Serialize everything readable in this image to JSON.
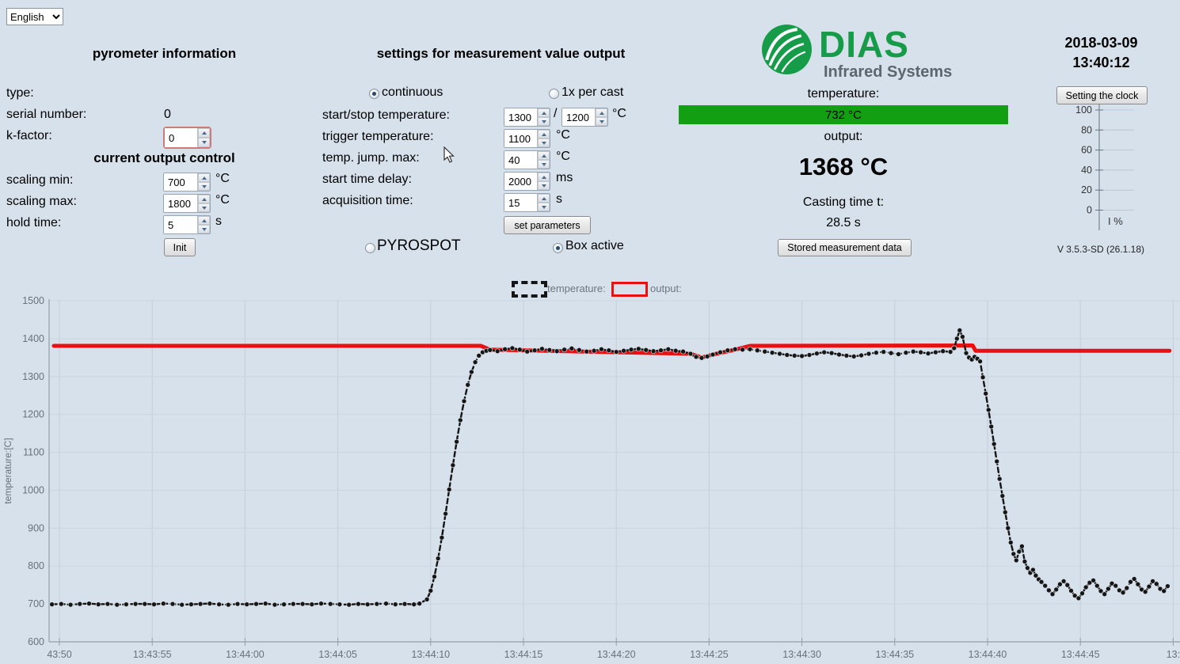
{
  "language": {
    "value": "English"
  },
  "pyrometer_info": {
    "title": "pyrometer information",
    "type_label": "type:",
    "serial_label": "serial number:",
    "serial_value": "0",
    "kfactor_label": "k-factor:",
    "kfactor_value": "0"
  },
  "current_output": {
    "title": "current output control",
    "scaling_min_label": "scaling min:",
    "scaling_min_value": "700",
    "scaling_min_unit": "°C",
    "scaling_max_label": "scaling max:",
    "scaling_max_value": "1800",
    "scaling_max_unit": "°C",
    "hold_time_label": "hold time:",
    "hold_time_value": "5",
    "hold_time_unit": "s",
    "init_button": "Init"
  },
  "settings": {
    "title": "settings for measurement value output",
    "continuous_label": "continuous",
    "per_cast_label": "1x per cast",
    "start_stop_label": "start/stop temperature:",
    "start_value": "1300",
    "stop_value": "1200",
    "start_stop_separator": "/",
    "start_stop_unit": "°C",
    "trigger_label": "trigger temperature:",
    "trigger_value": "1100",
    "trigger_unit": "°C",
    "jump_label": "temp. jump. max:",
    "jump_value": "40",
    "jump_unit": "°C",
    "delay_label": "start time delay:",
    "delay_value": "2000",
    "delay_unit": "ms",
    "acq_label": "acquisition time:",
    "acq_value": "15",
    "acq_unit": "s",
    "set_params_button": "set parameters",
    "pyrospot_label": "PYROSPOT",
    "box_active_label": "Box active"
  },
  "readout": {
    "brand_name": "DIAS",
    "brand_subtitle": "Infrared Systems",
    "brand_green": "#169c49",
    "brand_gray": "#5d666e",
    "temperature_label": "temperature:",
    "temperature_value": "732 °C",
    "temperature_bar_color": "#12a012",
    "output_label": "output:",
    "output_value": "1368 °C",
    "casting_label": "Casting time t:",
    "casting_value": "28.5 s",
    "stored_button": "Stored measurement data"
  },
  "clock": {
    "date": "2018-03-09",
    "time": "13:40:12",
    "button": "Setting the clock",
    "gauge_ticks": [
      "100",
      "80",
      "60",
      "40",
      "20",
      "0"
    ],
    "gauge_label": "I %",
    "version": "V 3.5.3-SD (26.1.18)"
  },
  "chart_data": {
    "type": "line",
    "title": "",
    "xlabel": "",
    "ylabel": "temperature:[C]",
    "ylim": [
      600,
      1500
    ],
    "y_ticks": [
      600,
      700,
      800,
      900,
      1000,
      1100,
      1200,
      1300,
      1400,
      1500
    ],
    "xlim_seconds_after_1343": [
      49.4,
      110.5
    ],
    "grid": true,
    "legend_position": "top",
    "legend": {
      "temperature_label": "temperature:",
      "output_label": "output:"
    },
    "x_ticks": [
      {
        "t": 50,
        "label": "43:50"
      },
      {
        "t": 55,
        "label": "13:43:55"
      },
      {
        "t": 60,
        "label": "13:44:00"
      },
      {
        "t": 65,
        "label": "13:44:05"
      },
      {
        "t": 70,
        "label": "13:44:10"
      },
      {
        "t": 75,
        "label": "13:44:15"
      },
      {
        "t": 80,
        "label": "13:44:20"
      },
      {
        "t": 85,
        "label": "13:44:25"
      },
      {
        "t": 90,
        "label": "13:44:30"
      },
      {
        "t": 95,
        "label": "13:44:35"
      },
      {
        "t": 100,
        "label": "13:44:40"
      },
      {
        "t": 105,
        "label": "13:44:45"
      },
      {
        "t": 110,
        "label": "13:"
      }
    ],
    "series": [
      {
        "name": "output",
        "color": "#e81010",
        "width": 5,
        "dashed": false,
        "markers": false,
        "points": [
          [
            49.7,
            1381
          ],
          [
            72.7,
            1381
          ],
          [
            73.2,
            1371
          ],
          [
            84.0,
            1360
          ],
          [
            84.6,
            1350
          ],
          [
            85.2,
            1358
          ],
          [
            86.4,
            1371
          ],
          [
            87.2,
            1381
          ],
          [
            99.2,
            1382
          ],
          [
            99.35,
            1368
          ],
          [
            109.8,
            1368
          ]
        ]
      },
      {
        "name": "temperature",
        "color": "#151515",
        "width": 2.4,
        "dashed": true,
        "markers": true,
        "points": [
          [
            49.6,
            699
          ],
          [
            50.1,
            700
          ],
          [
            50.6,
            698
          ],
          [
            51.1,
            700
          ],
          [
            51.6,
            701
          ],
          [
            52.1,
            699
          ],
          [
            52.6,
            700
          ],
          [
            53.1,
            698
          ],
          [
            53.6,
            699
          ],
          [
            54.1,
            700
          ],
          [
            54.6,
            700
          ],
          [
            55.1,
            699
          ],
          [
            55.6,
            701
          ],
          [
            56.1,
            700
          ],
          [
            56.6,
            698
          ],
          [
            57.1,
            699
          ],
          [
            57.6,
            700
          ],
          [
            58.1,
            701
          ],
          [
            58.6,
            699
          ],
          [
            59.1,
            698
          ],
          [
            59.6,
            700
          ],
          [
            60.1,
            699
          ],
          [
            60.6,
            700
          ],
          [
            61.1,
            701
          ],
          [
            61.6,
            698
          ],
          [
            62.1,
            699
          ],
          [
            62.6,
            700
          ],
          [
            63.1,
            700
          ],
          [
            63.6,
            699
          ],
          [
            64.1,
            701
          ],
          [
            64.6,
            700
          ],
          [
            65.1,
            699
          ],
          [
            65.6,
            698
          ],
          [
            66.1,
            700
          ],
          [
            66.6,
            699
          ],
          [
            67.1,
            700
          ],
          [
            67.6,
            701
          ],
          [
            68.1,
            699
          ],
          [
            68.6,
            700
          ],
          [
            69.1,
            699
          ],
          [
            69.4,
            701
          ],
          [
            69.8,
            712
          ],
          [
            70.0,
            735
          ],
          [
            70.2,
            772
          ],
          [
            70.4,
            820
          ],
          [
            70.6,
            875
          ],
          [
            70.8,
            938
          ],
          [
            71.0,
            1002
          ],
          [
            71.2,
            1066
          ],
          [
            71.4,
            1128
          ],
          [
            71.6,
            1185
          ],
          [
            71.8,
            1235
          ],
          [
            72.0,
            1278
          ],
          [
            72.2,
            1312
          ],
          [
            72.4,
            1338
          ],
          [
            72.6,
            1355
          ],
          [
            72.8,
            1364
          ],
          [
            73.0,
            1368
          ],
          [
            73.2,
            1370
          ],
          [
            73.6,
            1367
          ],
          [
            74.0,
            1372
          ],
          [
            74.4,
            1375
          ],
          [
            74.8,
            1371
          ],
          [
            75.2,
            1366
          ],
          [
            75.6,
            1369
          ],
          [
            76.0,
            1373
          ],
          [
            76.4,
            1370
          ],
          [
            76.8,
            1367
          ],
          [
            77.2,
            1371
          ],
          [
            77.6,
            1374
          ],
          [
            78.0,
            1370
          ],
          [
            78.4,
            1366
          ],
          [
            78.8,
            1368
          ],
          [
            79.2,
            1372
          ],
          [
            79.6,
            1369
          ],
          [
            80.0,
            1365
          ],
          [
            80.4,
            1368
          ],
          [
            80.8,
            1371
          ],
          [
            81.2,
            1373
          ],
          [
            81.6,
            1370
          ],
          [
            82.0,
            1367
          ],
          [
            82.4,
            1369
          ],
          [
            82.8,
            1372
          ],
          [
            83.2,
            1368
          ],
          [
            83.6,
            1366
          ],
          [
            84.0,
            1360
          ],
          [
            84.3,
            1352
          ],
          [
            84.6,
            1349
          ],
          [
            84.9,
            1353
          ],
          [
            85.2,
            1358
          ],
          [
            85.6,
            1364
          ],
          [
            86.0,
            1369
          ],
          [
            86.4,
            1372
          ],
          [
            86.8,
            1371
          ],
          [
            87.2,
            1372
          ],
          [
            87.6,
            1369
          ],
          [
            88.0,
            1366
          ],
          [
            88.4,
            1363
          ],
          [
            88.8,
            1360
          ],
          [
            89.2,
            1357
          ],
          [
            89.6,
            1355
          ],
          [
            90.0,
            1354
          ],
          [
            90.4,
            1357
          ],
          [
            90.8,
            1361
          ],
          [
            91.2,
            1364
          ],
          [
            91.6,
            1362
          ],
          [
            92.0,
            1358
          ],
          [
            92.4,
            1355
          ],
          [
            92.8,
            1353
          ],
          [
            93.2,
            1356
          ],
          [
            93.6,
            1360
          ],
          [
            94.0,
            1363
          ],
          [
            94.4,
            1365
          ],
          [
            94.8,
            1362
          ],
          [
            95.2,
            1359
          ],
          [
            95.6,
            1363
          ],
          [
            96.0,
            1366
          ],
          [
            96.4,
            1364
          ],
          [
            96.8,
            1361
          ],
          [
            97.2,
            1364
          ],
          [
            97.6,
            1367
          ],
          [
            98.0,
            1365
          ],
          [
            98.2,
            1375
          ],
          [
            98.35,
            1400
          ],
          [
            98.5,
            1422
          ],
          [
            98.65,
            1405
          ],
          [
            98.85,
            1362
          ],
          [
            99.0,
            1350
          ],
          [
            99.15,
            1345
          ],
          [
            99.3,
            1352
          ],
          [
            99.45,
            1347
          ],
          [
            99.6,
            1340
          ],
          [
            99.75,
            1298
          ],
          [
            99.9,
            1255
          ],
          [
            100.05,
            1212
          ],
          [
            100.2,
            1168
          ],
          [
            100.35,
            1122
          ],
          [
            100.5,
            1076
          ],
          [
            100.65,
            1030
          ],
          [
            100.8,
            985
          ],
          [
            100.95,
            942
          ],
          [
            101.1,
            900
          ],
          [
            101.25,
            862
          ],
          [
            101.4,
            832
          ],
          [
            101.55,
            815
          ],
          [
            101.7,
            838
          ],
          [
            101.85,
            852
          ],
          [
            102.0,
            812
          ],
          [
            102.15,
            795
          ],
          [
            102.3,
            782
          ],
          [
            102.45,
            790
          ],
          [
            102.6,
            775
          ],
          [
            102.75,
            765
          ],
          [
            102.9,
            758
          ],
          [
            103.1,
            748
          ],
          [
            103.3,
            736
          ],
          [
            103.5,
            726
          ],
          [
            103.7,
            738
          ],
          [
            103.9,
            752
          ],
          [
            104.1,
            760
          ],
          [
            104.3,
            750
          ],
          [
            104.5,
            735
          ],
          [
            104.7,
            722
          ],
          [
            104.9,
            715
          ],
          [
            105.1,
            728
          ],
          [
            105.3,
            744
          ],
          [
            105.5,
            756
          ],
          [
            105.7,
            762
          ],
          [
            105.9,
            748
          ],
          [
            106.1,
            734
          ],
          [
            106.3,
            726
          ],
          [
            106.5,
            740
          ],
          [
            106.7,
            754
          ],
          [
            106.9,
            748
          ],
          [
            107.1,
            736
          ],
          [
            107.3,
            730
          ],
          [
            107.5,
            742
          ],
          [
            107.7,
            758
          ],
          [
            107.9,
            766
          ],
          [
            108.1,
            752
          ],
          [
            108.3,
            738
          ],
          [
            108.5,
            732
          ],
          [
            108.7,
            746
          ],
          [
            108.9,
            760
          ],
          [
            109.1,
            753
          ],
          [
            109.3,
            740
          ],
          [
            109.5,
            734
          ],
          [
            109.7,
            747
          ]
        ]
      }
    ]
  }
}
